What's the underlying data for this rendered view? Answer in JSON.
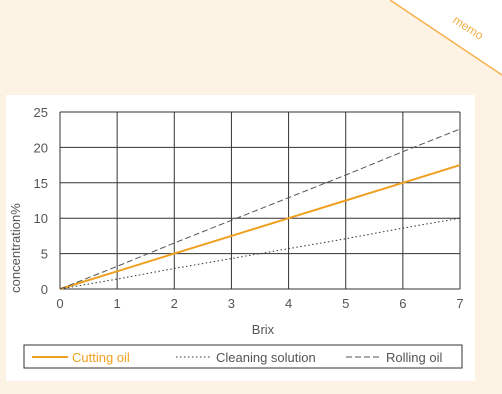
{
  "corner_label": "memo",
  "colors": {
    "page_bg": "#fdf3e4",
    "accent": "#f5b04a",
    "cutting_oil": "#f0a020",
    "grid": "#333333",
    "text": "#555555"
  },
  "chart_data": {
    "type": "line",
    "title": "",
    "xlabel": "Brix",
    "ylabel": "concentration%",
    "xlim": [
      0,
      7
    ],
    "ylim": [
      0,
      25
    ],
    "xticks": [
      "0",
      "1",
      "2",
      "3",
      "4",
      "5",
      "6",
      "7"
    ],
    "yticks": [
      "0",
      "5",
      "10",
      "15",
      "20",
      "25"
    ],
    "grid": true,
    "legend_position": "bottom",
    "series": [
      {
        "name": "Cutting oil",
        "style": "solid",
        "color": "#f0a020",
        "x": [
          0,
          1,
          2,
          3,
          4,
          5,
          6,
          7
        ],
        "y": [
          0,
          2.5,
          5,
          7.5,
          10,
          12.5,
          15,
          17.5
        ]
      },
      {
        "name": "Cleaning solution",
        "style": "dotted",
        "color": "#333333",
        "x": [
          0,
          1,
          2,
          3,
          4,
          5,
          6,
          7
        ],
        "y": [
          0,
          1.4,
          2.9,
          4.3,
          5.7,
          7.1,
          8.6,
          10
        ]
      },
      {
        "name": "Rolling oil",
        "style": "dashed",
        "color": "#555555",
        "x": [
          0,
          1,
          2,
          3,
          4,
          5,
          6,
          7
        ],
        "y": [
          0,
          3.2,
          6.5,
          9.7,
          12.9,
          16.1,
          19.4,
          22.6
        ]
      }
    ]
  }
}
